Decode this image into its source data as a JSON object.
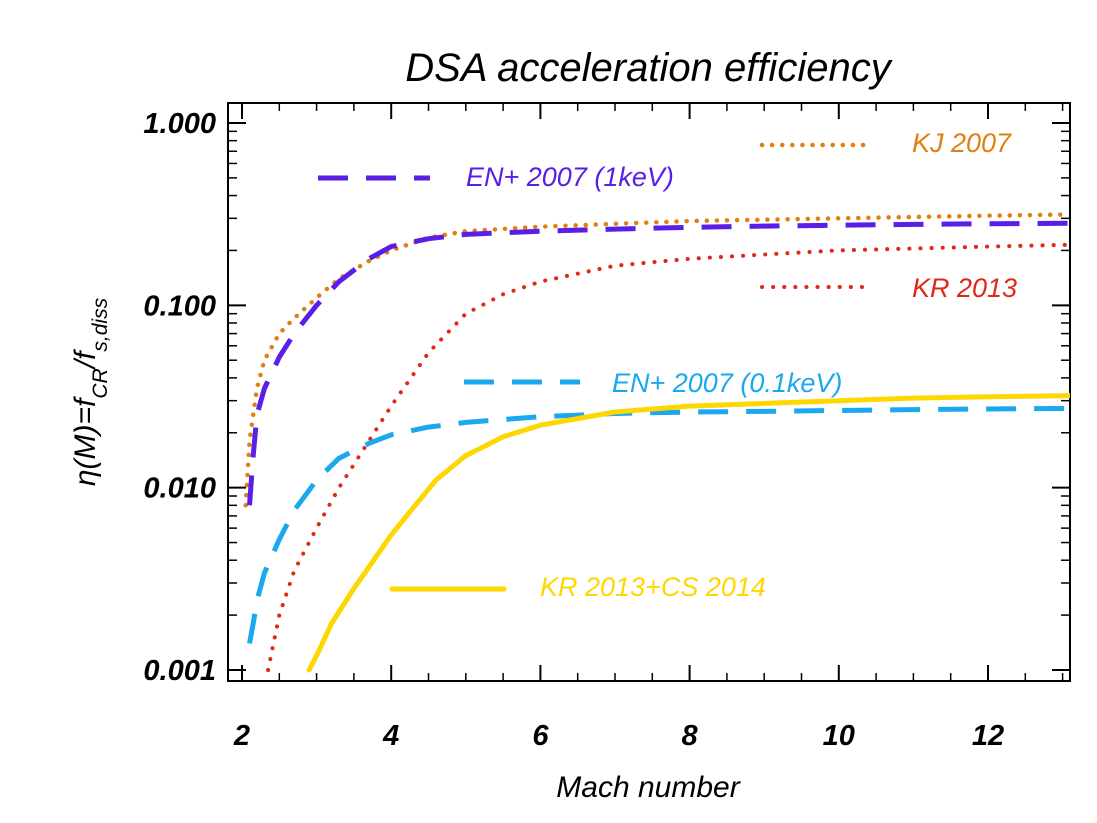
{
  "chart_data": {
    "type": "line",
    "title": "DSA acceleration  efficiency",
    "xlabel": "Mach number",
    "ylabel": "η(M)=f_CR/f_s,diss",
    "ylabel_parts": {
      "pre": "η(M)=f",
      "sub1": "CR",
      "mid": "/f",
      "sub2": "s,diss"
    },
    "xlim": [
      1.95,
      13.1
    ],
    "ylim": [
      0.001,
      1.25
    ],
    "yscale": "log",
    "x_ticks": [
      2,
      4,
      6,
      8,
      10,
      12
    ],
    "x_tick_labels": [
      "2",
      "4",
      "6",
      "8",
      "10",
      "12"
    ],
    "y_ticks": [
      0.001,
      0.01,
      0.1,
      1.0
    ],
    "y_tick_labels": [
      "0.001",
      "0.010",
      "0.100",
      "1.000"
    ],
    "series": [
      {
        "name": "KJ 2007",
        "color": "#e08010",
        "style": "dotted-thick",
        "x": [
          2.05,
          2.1,
          2.2,
          2.3,
          2.5,
          2.7,
          3.0,
          3.3,
          3.7,
          4.0,
          4.5,
          5.0,
          6.0,
          7.0,
          8.0,
          9.0,
          10.0,
          11.0,
          12.0,
          13.1
        ],
        "values": [
          0.008,
          0.018,
          0.035,
          0.05,
          0.07,
          0.085,
          0.11,
          0.14,
          0.175,
          0.2,
          0.235,
          0.255,
          0.27,
          0.28,
          0.29,
          0.295,
          0.3,
          0.305,
          0.31,
          0.315
        ]
      },
      {
        "name": "EN+ 2007 (1keV)",
        "color": "#5a1ee6",
        "style": "long-dash",
        "x": [
          2.1,
          2.15,
          2.2,
          2.3,
          2.5,
          2.7,
          3.0,
          3.3,
          3.7,
          4.0,
          4.5,
          5.0,
          6.0,
          7.0,
          8.0,
          9.0,
          10.0,
          11.0,
          12.0,
          13.1
        ],
        "values": [
          0.008,
          0.015,
          0.025,
          0.035,
          0.052,
          0.07,
          0.1,
          0.135,
          0.18,
          0.21,
          0.232,
          0.245,
          0.255,
          0.262,
          0.268,
          0.272,
          0.275,
          0.278,
          0.28,
          0.282
        ]
      },
      {
        "name": "KR 2013",
        "color": "#e02818",
        "style": "dotted",
        "x": [
          2.35,
          2.5,
          2.7,
          3.0,
          3.3,
          3.7,
          4.0,
          4.5,
          5.0,
          5.5,
          6.0,
          7.0,
          8.0,
          9.0,
          10.0,
          11.0,
          12.0,
          13.1
        ],
        "values": [
          0.001,
          0.002,
          0.0035,
          0.006,
          0.01,
          0.018,
          0.028,
          0.055,
          0.09,
          0.115,
          0.135,
          0.165,
          0.18,
          0.19,
          0.2,
          0.205,
          0.21,
          0.215
        ]
      },
      {
        "name": "EN+ 2007 (0.1keV)",
        "color": "#1aa8ee",
        "style": "long-dash",
        "x": [
          2.1,
          2.15,
          2.2,
          2.3,
          2.5,
          2.7,
          3.0,
          3.3,
          3.7,
          4.0,
          4.5,
          5.0,
          6.0,
          7.0,
          8.0,
          9.0,
          10.0,
          11.0,
          12.0,
          13.1
        ],
        "values": [
          0.0014,
          0.0018,
          0.0024,
          0.0034,
          0.0052,
          0.0075,
          0.011,
          0.0145,
          0.0175,
          0.0195,
          0.0215,
          0.0228,
          0.0245,
          0.0255,
          0.026,
          0.0262,
          0.0265,
          0.0268,
          0.027,
          0.0272
        ]
      },
      {
        "name": "KR 2013+CS 2014",
        "color": "#ffd700",
        "style": "solid",
        "x": [
          2.9,
          3.0,
          3.2,
          3.5,
          3.8,
          4.0,
          4.3,
          4.6,
          5.0,
          5.5,
          6.0,
          7.0,
          8.0,
          9.0,
          10.0,
          11.0,
          12.0,
          13.1
        ],
        "values": [
          0.001,
          0.0012,
          0.0018,
          0.0028,
          0.0042,
          0.0055,
          0.0078,
          0.011,
          0.015,
          0.019,
          0.022,
          0.026,
          0.028,
          0.029,
          0.03,
          0.031,
          0.0315,
          0.032
        ]
      }
    ],
    "legend": [
      {
        "label": "KJ 2007",
        "series": 0,
        "color": "#e08010",
        "style": "dotted-thick"
      },
      {
        "label": "EN+ 2007 (1keV)",
        "series": 1,
        "color": "#5a1ee6",
        "style": "long-dash"
      },
      {
        "label": "KR 2013",
        "series": 2,
        "color": "#e02818",
        "style": "dotted"
      },
      {
        "label": "EN+ 2007 (0.1keV)",
        "series": 3,
        "color": "#1aa8ee",
        "style": "long-dash"
      },
      {
        "label": "KR 2013+CS 2014",
        "series": 4,
        "color": "#ffd700",
        "style": "solid"
      }
    ]
  }
}
